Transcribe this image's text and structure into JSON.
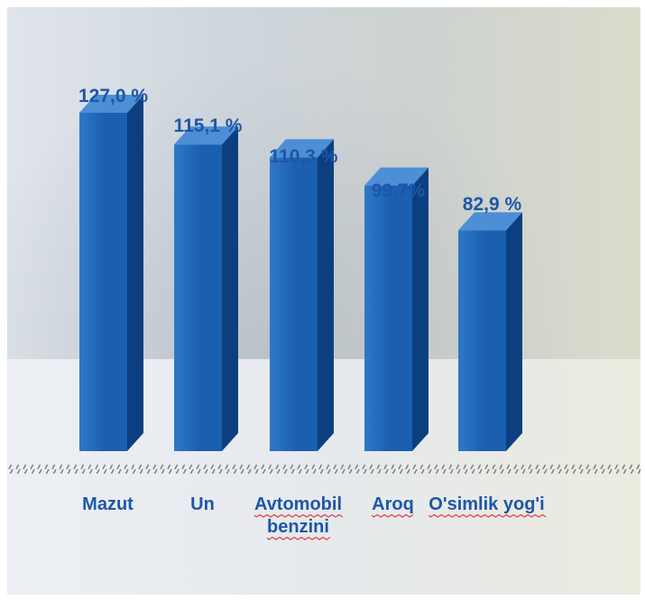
{
  "chart_data": {
    "type": "bar",
    "categories": [
      [
        "Mazut"
      ],
      [
        "Un"
      ],
      [
        "Avtomobil",
        "benzini"
      ],
      [
        "Aroq"
      ],
      [
        "O'simlik yog'i"
      ]
    ],
    "values": [
      127.0,
      115.1,
      110.3,
      99.7,
      82.9
    ],
    "data_labels": [
      "127,0 %",
      "115,1 %",
      "110,3 %",
      "99,7%",
      "82,9 %"
    ],
    "spellcheck_underlined": [
      false,
      false,
      true,
      true,
      true
    ],
    "ylim": [
      0,
      127.0
    ],
    "colors": {
      "bar_front": "#1a5fb0",
      "bar_front_light": "#2f78c8",
      "bar_side": "#0c3f80",
      "bar_top": "#4c8fd6",
      "label": "#1e56a8",
      "spellcheck": "#e04040",
      "axis": "#7a7a7a"
    }
  }
}
